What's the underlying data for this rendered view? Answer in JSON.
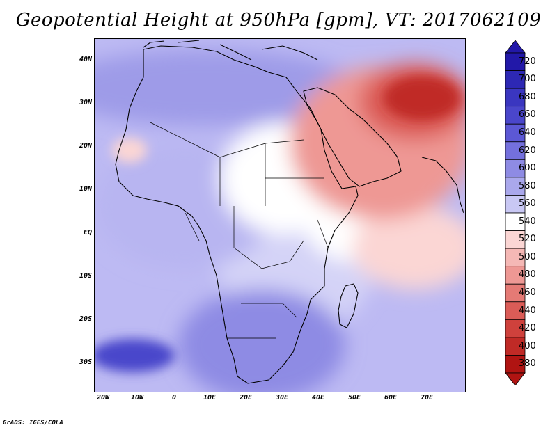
{
  "title": "Geopotential Height at 950hPa [gpm], VT: 2017062109",
  "credit": "GrADS: IGES/COLA",
  "lat_labels": [
    "40N",
    "30N",
    "20N",
    "10N",
    "EQ",
    "10S",
    "20S",
    "30S"
  ],
  "lon_labels": [
    "20W",
    "10W",
    "0",
    "10E",
    "20E",
    "30E",
    "40E",
    "50E",
    "60E",
    "70E"
  ],
  "colorbar": {
    "values": [
      "720",
      "700",
      "680",
      "660",
      "640",
      "620",
      "600",
      "580",
      "560",
      "540",
      "520",
      "500",
      "480",
      "460",
      "440",
      "420",
      "400",
      "380"
    ],
    "colors": [
      "#2218a8",
      "#2d28b4",
      "#3a36c0",
      "#4a46cb",
      "#5c58d5",
      "#7470dd",
      "#8e8be4",
      "#aaa8ec",
      "#c9c8f4",
      "#ffffff",
      "#fbd6d4",
      "#f5b8b5",
      "#ee9894",
      "#e57a75",
      "#db5c57",
      "#cf413c",
      "#c02a26",
      "#b01412"
    ]
  },
  "map": {
    "fields": {
      "ocean_base": "#bdbaf3",
      "africa_west": "#b8b5f1",
      "africa_central": "#d4d3f7",
      "sahara": "#ffffff",
      "arabia": "#ee9894",
      "iran_core": "#c02a26",
      "south_atlantic_low": "#4a46cb",
      "south_africa": "#8e8be4",
      "mediterranean": "#9e9be8"
    }
  }
}
